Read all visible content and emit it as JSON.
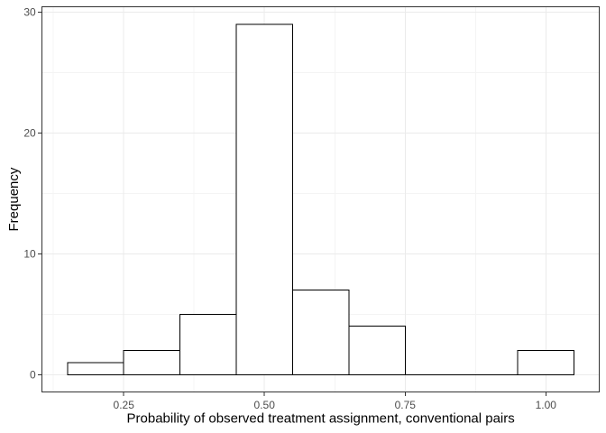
{
  "figure": {
    "background": "#ffffff"
  },
  "chart_data": {
    "type": "bar",
    "subtype": "histogram",
    "title": "",
    "xlabel": "Probability of observed treatment assignment, conventional pairs",
    "ylabel": "Frequency",
    "bin_width": 0.1,
    "bin_centers": [
      0.2,
      0.3,
      0.4,
      0.5,
      0.6,
      0.7,
      0.8,
      0.9,
      1.0
    ],
    "counts": [
      1,
      2,
      5,
      29,
      7,
      4,
      0,
      0,
      2
    ],
    "x_axis": {
      "range": [
        0.105,
        1.095
      ],
      "major_ticks": [
        0.25,
        0.5,
        0.75,
        1.0
      ],
      "tick_labels": [
        "0.25",
        "0.50",
        "0.75",
        "1.00"
      ],
      "minor_ticks": [
        0.125,
        0.375,
        0.625,
        0.875
      ]
    },
    "y_axis": {
      "range": [
        -1.45,
        30.45
      ],
      "major_ticks": [
        0,
        10,
        20,
        30
      ],
      "tick_labels": [
        "0",
        "10",
        "20",
        "30"
      ],
      "minor_ticks": [
        5,
        15,
        25
      ]
    },
    "grid": "on",
    "legend": "none",
    "colors": {
      "bar_fill": "#ffffff",
      "bar_stroke": "#000000",
      "panel_background": "#ffffff",
      "panel_border": "#333333",
      "grid_major": "#ebebeb",
      "grid_minor": "#f4f4f4",
      "tick_mark": "#333333",
      "tick_label": "#4d4d4d",
      "axis_title": "#000000"
    }
  }
}
